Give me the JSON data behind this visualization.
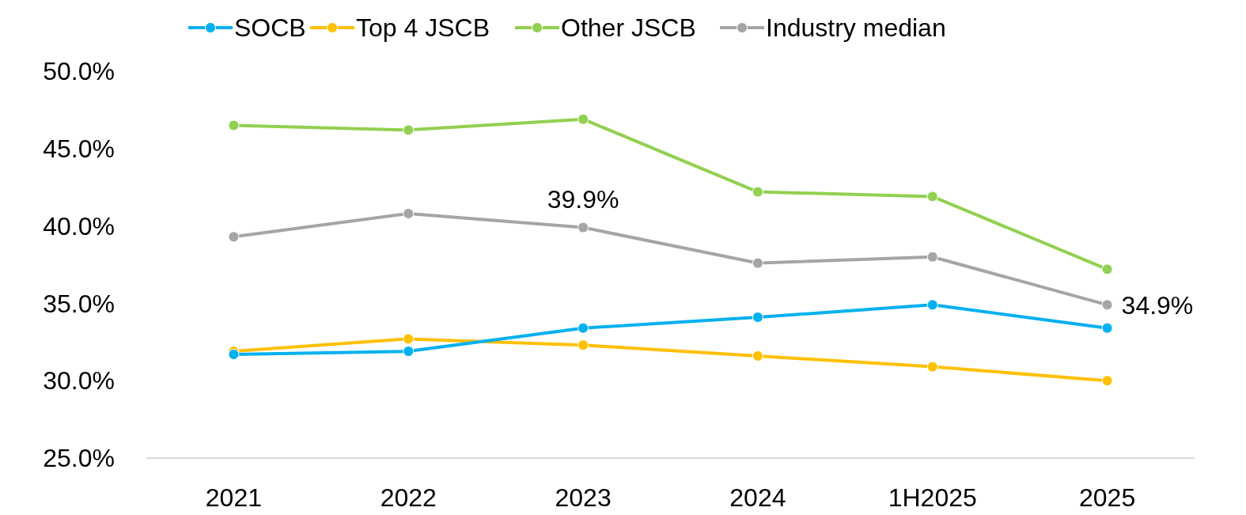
{
  "chart_data": {
    "type": "line",
    "categories": [
      "2021",
      "2022",
      "2023",
      "2024",
      "1H2025",
      "2025"
    ],
    "series": [
      {
        "name": "SOCB",
        "color": "#00b0f0",
        "values": [
          31.7,
          31.9,
          33.4,
          34.1,
          34.9,
          33.4
        ]
      },
      {
        "name": "Top 4 JSCB",
        "color": "#ffc000",
        "values": [
          31.9,
          32.7,
          32.3,
          31.6,
          30.9,
          30.0
        ]
      },
      {
        "name": "Other JSCB",
        "color": "#92d050",
        "values": [
          46.5,
          46.2,
          46.9,
          42.2,
          41.9,
          37.2
        ]
      },
      {
        "name": "Industry median",
        "color": "#a5a5a5",
        "values": [
          39.3,
          40.8,
          39.9,
          37.6,
          38.0,
          34.9
        ]
      }
    ],
    "ylim": [
      25,
      50
    ],
    "yticks": [
      {
        "value": 25,
        "label": "25.0%"
      },
      {
        "value": 30,
        "label": "30.0%"
      },
      {
        "value": 35,
        "label": "35.0%"
      },
      {
        "value": 40,
        "label": "40.0%"
      },
      {
        "value": 45,
        "label": "45.0%"
      },
      {
        "value": 50,
        "label": "50.0%"
      }
    ],
    "annotations": [
      {
        "text": "39.9%",
        "x": "2023",
        "y": 39.9
      },
      {
        "text": "34.9%",
        "x": "2025",
        "y": 34.9
      }
    ],
    "legend": "top",
    "marker": "circle",
    "line_style": "solid",
    "grid": false
  }
}
